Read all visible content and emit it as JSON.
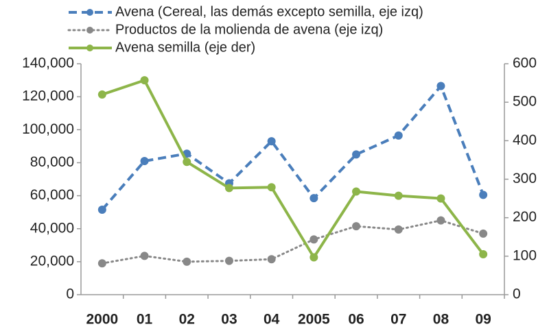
{
  "chart_data": {
    "type": "line",
    "categories": [
      "2000",
      "01",
      "02",
      "03",
      "04",
      "2005",
      "06",
      "07",
      "08",
      "09"
    ],
    "series": [
      {
        "name": "Avena (Cereal, las demás excepto semilla, eje izq)",
        "color": "#4a7ebb",
        "style": "dashed",
        "axis": "y",
        "values": [
          51500,
          81000,
          85500,
          67500,
          93000,
          58500,
          85000,
          96500,
          126500,
          60500
        ]
      },
      {
        "name": "Productos de la molienda de avena (eje izq)",
        "color": "#888888",
        "style": "dotted",
        "axis": "y",
        "values": [
          19000,
          23500,
          20000,
          20500,
          21500,
          33500,
          41500,
          39500,
          45000,
          37000
        ]
      },
      {
        "name": "Avena semilla (eje der)",
        "color": "#8db549",
        "style": "solid",
        "axis": "y2",
        "values": [
          520,
          557,
          345,
          277,
          279,
          97,
          268,
          257,
          250,
          105
        ]
      }
    ],
    "ylim": [
      0,
      140000
    ],
    "yticks": [
      0,
      {
        "value": 20000,
        "label": "20,000"
      },
      {
        "value": 40000,
        "label": "40,000"
      },
      {
        "value": 60000,
        "label": "60,000"
      },
      {
        "value": 80000,
        "label": "80,000"
      },
      {
        "value": 100000,
        "label": "100,000"
      },
      {
        "value": 120000,
        "label": "120,000"
      },
      {
        "value": 140000,
        "label": "140,000"
      }
    ],
    "y2lim": [
      0,
      600
    ],
    "y2ticks": [
      0,
      100,
      200,
      300,
      400,
      500,
      600
    ],
    "grid": false
  }
}
